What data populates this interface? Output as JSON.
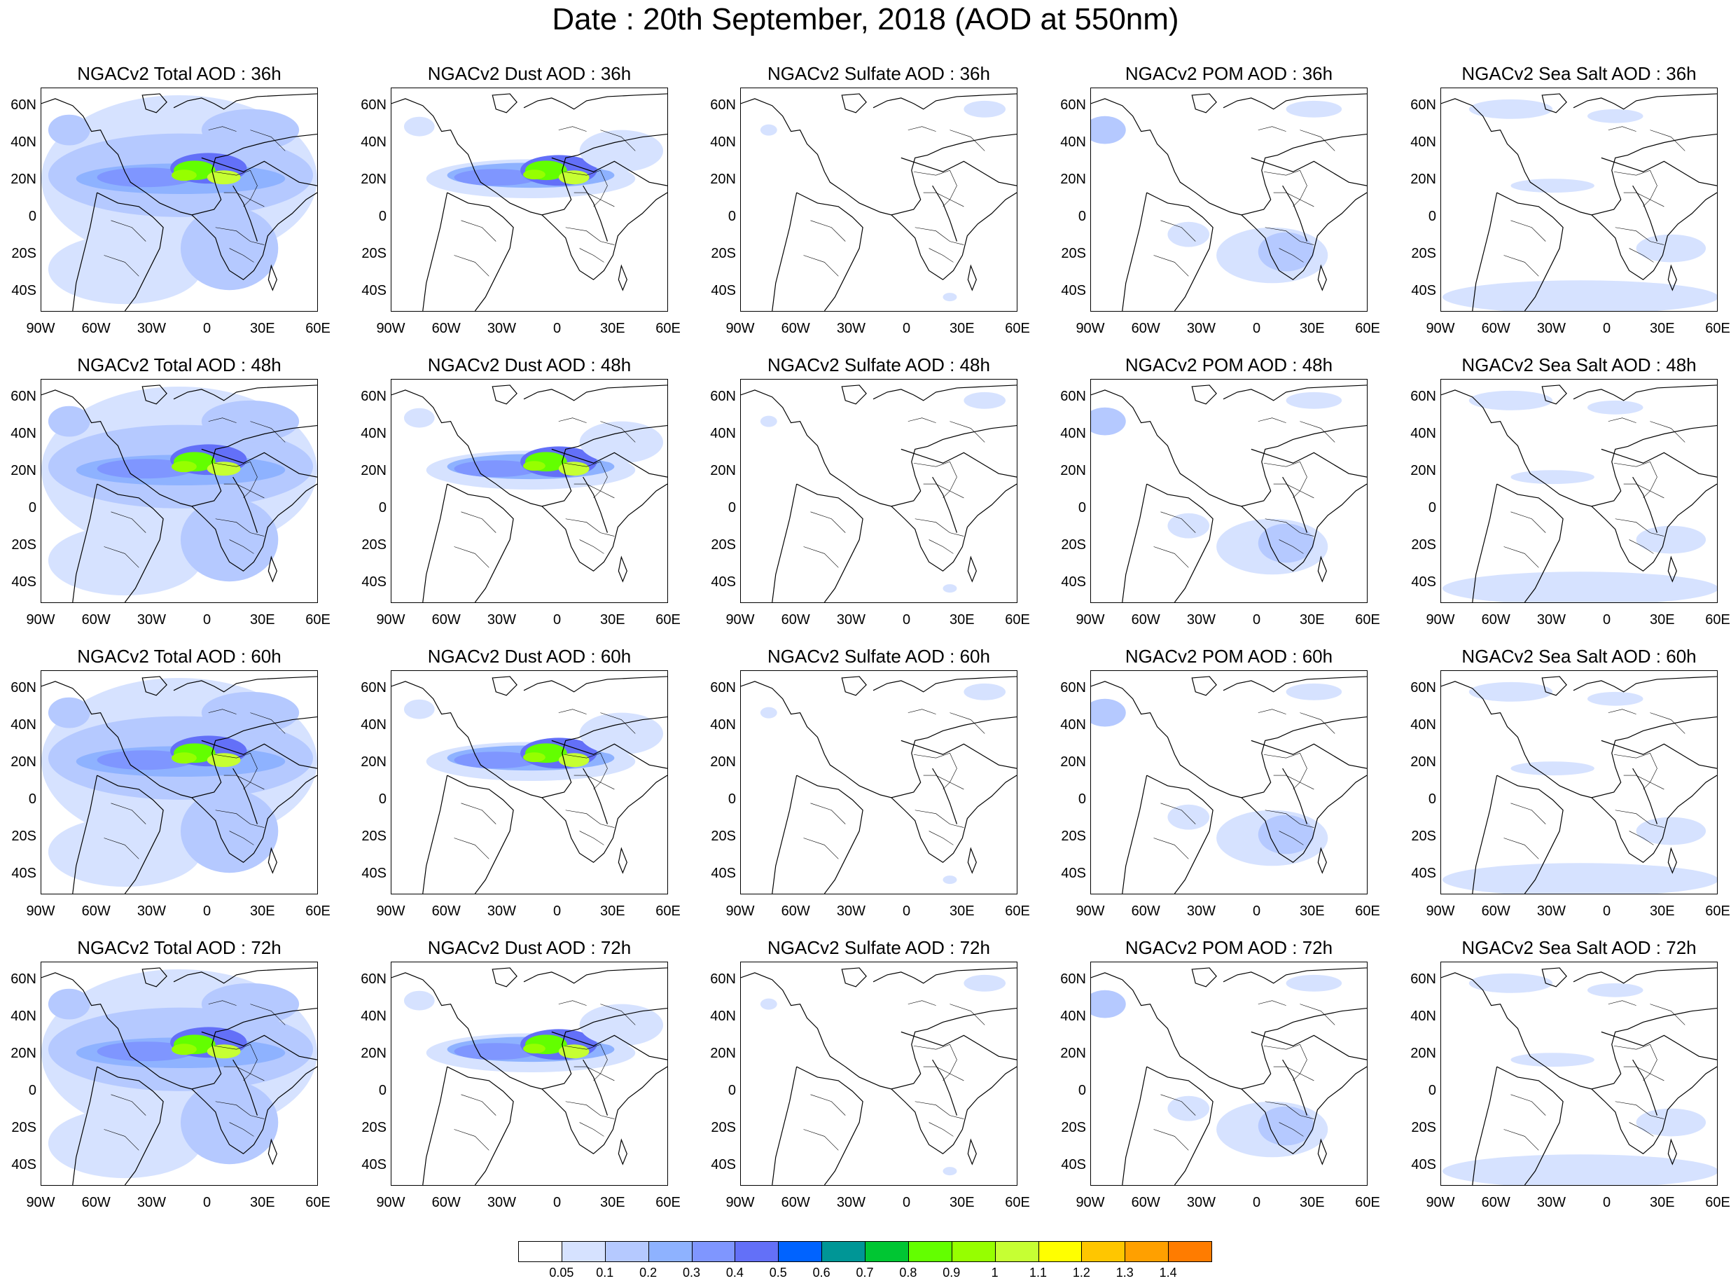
{
  "title": "Date : 20th September, 2018 (AOD at 550nm)",
  "axes": {
    "lat_labels": [
      "60N",
      "40N",
      "20N",
      "0",
      "20S",
      "40S"
    ],
    "lon_labels": [
      "90W",
      "60W",
      "30W",
      "0",
      "30E",
      "60E"
    ]
  },
  "panels": [
    [
      "NGACv2 Total AOD : 36h",
      "NGACv2 Dust AOD : 36h",
      "NGACv2 Sulfate AOD : 36h",
      "NGACv2 POM AOD : 36h",
      "NGACv2 Sea Salt AOD : 36h"
    ],
    [
      "NGACv2 Total AOD : 48h",
      "NGACv2 Dust AOD : 48h",
      "NGACv2 Sulfate AOD : 48h",
      "NGACv2 POM AOD : 48h",
      "NGACv2 Sea Salt AOD : 48h"
    ],
    [
      "NGACv2 Total AOD : 60h",
      "NGACv2 Dust AOD : 60h",
      "NGACv2 Sulfate AOD : 60h",
      "NGACv2 POM AOD : 60h",
      "NGACv2 Sea Salt AOD : 60h"
    ],
    [
      "NGACv2 Total AOD : 72h",
      "NGACv2 Dust AOD : 72h",
      "NGACv2 Sulfate AOD : 72h",
      "NGACv2 POM AOD : 72h",
      "NGACv2 Sea Salt  AOD : 72h"
    ]
  ],
  "colorbar": {
    "labels": [
      "0.05",
      "0.1",
      "0.2",
      "0.3",
      "0.4",
      "0.5",
      "0.6",
      "0.7",
      "0.8",
      "0.9",
      "1",
      "1.1",
      "1.2",
      "1.3",
      "1.4"
    ],
    "colors": [
      "#ffffff",
      "#d6e2ff",
      "#b5c9ff",
      "#8eb2ff",
      "#7f96ff",
      "#6370f8",
      "#0063ff",
      "#009696",
      "#00c633",
      "#63ff00",
      "#96ff00",
      "#c6ff33",
      "#ffff00",
      "#ffc600",
      "#ffa000",
      "#ff7c00",
      "#ff1900"
    ]
  }
}
